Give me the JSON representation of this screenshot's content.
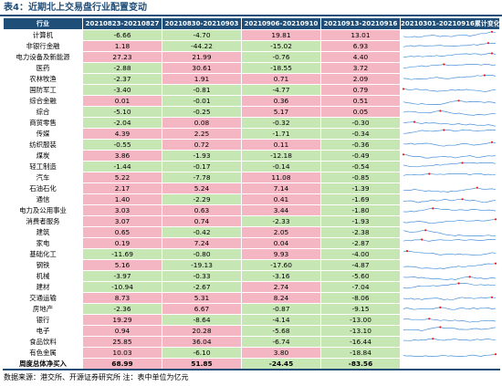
{
  "title": "表4：近期北上交易盘行业配置变动",
  "headers": [
    "行业",
    "20210823-20210827",
    "20210830-20210903",
    "20210906-20210910",
    "20210913-20210916",
    "20210301-20210916累计变化"
  ],
  "rows": [
    {
      "name": "计算机",
      "values": [
        "-6.66",
        "-4.70",
        "19.81",
        "13.01"
      ]
    },
    {
      "name": "非银行金融",
      "values": [
        "1.18",
        "-44.22",
        "-15.02",
        "6.93"
      ]
    },
    {
      "name": "电力设备及新能源",
      "values": [
        "27.23",
        "21.99",
        "-0.76",
        "4.40"
      ]
    },
    {
      "name": "医药",
      "values": [
        "-2.88",
        "30.61",
        "-18.55",
        "3.72"
      ]
    },
    {
      "name": "农林牧渔",
      "values": [
        "-2.37",
        "1.91",
        "0.71",
        "2.09"
      ]
    },
    {
      "name": "国防军工",
      "values": [
        "-3.40",
        "-0.81",
        "-4.77",
        "0.79"
      ]
    },
    {
      "name": "综合金融",
      "values": [
        "0.01",
        "-0.01",
        "0.36",
        "0.51"
      ]
    },
    {
      "name": "综合",
      "values": [
        "-5.10",
        "-0.25",
        "5.17",
        "0.05"
      ]
    },
    {
      "name": "商贸零售",
      "values": [
        "-2.04",
        "0.08",
        "-0.32",
        "-0.30"
      ]
    },
    {
      "name": "传媒",
      "values": [
        "4.39",
        "2.25",
        "-1.71",
        "-0.34"
      ]
    },
    {
      "name": "纺织服装",
      "values": [
        "-0.55",
        "0.72",
        "0.11",
        "-0.36"
      ]
    },
    {
      "name": "煤炭",
      "values": [
        "3.86",
        "-1.93",
        "-12.18",
        "-0.49"
      ]
    },
    {
      "name": "轻工制造",
      "values": [
        "-1.44",
        "-0.17",
        "-0.14",
        "-0.54"
      ]
    },
    {
      "name": "汽车",
      "values": [
        "5.22",
        "-7.78",
        "11.08",
        "-0.85"
      ]
    },
    {
      "name": "石油石化",
      "values": [
        "2.17",
        "5.24",
        "7.14",
        "-1.39"
      ]
    },
    {
      "name": "通信",
      "values": [
        "1.40",
        "-2.29",
        "0.41",
        "-1.69"
      ]
    },
    {
      "name": "电力及公用事业",
      "values": [
        "3.03",
        "0.63",
        "3.44",
        "-1.80"
      ]
    },
    {
      "name": "消费者服务",
      "values": [
        "3.07",
        "0.74",
        "-2.33",
        "-1.93"
      ]
    },
    {
      "name": "建筑",
      "values": [
        "0.65",
        "-0.42",
        "2.05",
        "-2.38"
      ]
    },
    {
      "name": "家电",
      "values": [
        "0.19",
        "7.24",
        "0.04",
        "-2.87"
      ]
    },
    {
      "name": "基础化工",
      "values": [
        "-11.69",
        "-0.80",
        "9.93",
        "-4.00"
      ]
    },
    {
      "name": "钢铁",
      "values": [
        "5.16",
        "-19.13",
        "-17.60",
        "-4.87"
      ]
    },
    {
      "name": "机械",
      "values": [
        "-3.97",
        "-0.33",
        "-3.16",
        "-5.60"
      ]
    },
    {
      "name": "建材",
      "values": [
        "-10.94",
        "-2.67",
        "2.74",
        "-7.04"
      ]
    },
    {
      "name": "交通运输",
      "values": [
        "8.73",
        "5.31",
        "8.24",
        "-8.06"
      ]
    },
    {
      "name": "房地产",
      "values": [
        "-2.36",
        "6.67",
        "-0.87",
        "-9.15"
      ]
    },
    {
      "name": "银行",
      "values": [
        "19.29",
        "-8.64",
        "-4.14",
        "-13.00"
      ]
    },
    {
      "name": "电子",
      "values": [
        "0.94",
        "20.28",
        "-5.68",
        "-13.10"
      ]
    },
    {
      "name": "食品饮料",
      "values": [
        "25.85",
        "36.04",
        "-6.74",
        "-16.44"
      ]
    },
    {
      "name": "有色金属",
      "values": [
        "10.03",
        "-6.10",
        "3.80",
        "-18.84"
      ]
    }
  ],
  "total": {
    "name": "周度总体净买入",
    "values": [
      "68.99",
      "51.85",
      "-24.45",
      "-83.56"
    ]
  },
  "source": "数据来源：港交所、开源证券研究所  注：表中单位为亿元",
  "colors": {
    "header": "#1f4e79",
    "positive": "#f4b6c2",
    "negative": "#c6e7b4",
    "sparkline": "#4a90d9",
    "marker": "#e02020"
  }
}
